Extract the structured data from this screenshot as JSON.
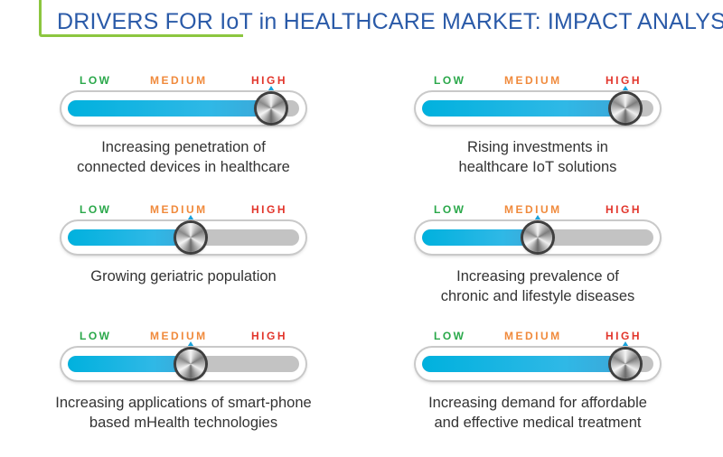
{
  "title": "DRIVERS FOR IoT in HEALTHCARE MARKET: IMPACT ANALYSIS",
  "levels": {
    "low": "LOW",
    "medium": "MEDIUM",
    "high": "HIGH"
  },
  "colors": {
    "title": "#2a5aa8",
    "accent_line": "#8cc63f",
    "low": "#2aa84a",
    "medium": "#f08a3c",
    "high": "#e2352b",
    "fill": "#00b1de",
    "track": "#c3c3c3"
  },
  "chart_data": {
    "type": "bar",
    "title": "DRIVERS FOR IoT in HEALTHCARE MARKET: IMPACT ANALYSIS",
    "scale": [
      "LOW",
      "MEDIUM",
      "HIGH"
    ],
    "drivers": [
      {
        "label_line1": "Increasing penetration of",
        "label_line2": "connected devices in healthcare",
        "impact": "HIGH",
        "level": 0.88
      },
      {
        "label_line1": "Rising investments in",
        "label_line2": "healthcare IoT solutions",
        "impact": "HIGH",
        "level": 0.88
      },
      {
        "label_line1": "Growing geriatric population",
        "label_line2": "",
        "impact": "MEDIUM",
        "level": 0.53
      },
      {
        "label_line1": "Increasing prevalence of",
        "label_line2": "chronic and lifestyle diseases",
        "impact": "MEDIUM",
        "level": 0.5
      },
      {
        "label_line1": "Increasing applications of smart-phone",
        "label_line2": "based mHealth technologies",
        "impact": "MEDIUM",
        "level": 0.53
      },
      {
        "label_line1": "Increasing demand for affordable",
        "label_line2": "and effective medical treatment",
        "impact": "HIGH",
        "level": 0.88
      }
    ]
  }
}
